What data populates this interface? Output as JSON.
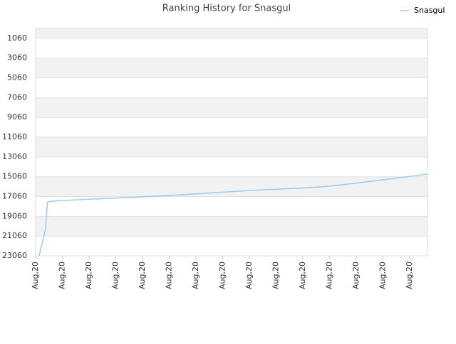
{
  "chart_data": {
    "type": "line",
    "title": "Ranking History for Snasgul",
    "x": [
      0.13,
      0.37,
      0.43,
      0.45,
      0.67,
      2,
      4,
      6,
      8,
      10,
      11.01,
      12,
      13,
      14.67
    ],
    "series": [
      {
        "name": "Snasgul",
        "color": "#9ec9ec",
        "values": [
          23060,
          20330,
          18030,
          17600,
          17520,
          17330,
          17090,
          16800,
          16450,
          16200,
          16015,
          15700,
          15370,
          14790
        ]
      }
    ],
    "xlim": [
      0,
      14.67
    ],
    "xticks": [
      {
        "value": 0,
        "label": "Aug,20"
      },
      {
        "value": 1,
        "label": "Aug,20"
      },
      {
        "value": 2,
        "label": "Aug,20"
      },
      {
        "value": 3,
        "label": "Aug,20"
      },
      {
        "value": 4,
        "label": "Aug,20"
      },
      {
        "value": 5,
        "label": "Aug,20"
      },
      {
        "value": 6,
        "label": "Aug,20"
      },
      {
        "value": 7,
        "label": "Aug,20"
      },
      {
        "value": 8,
        "label": "Aug,20"
      },
      {
        "value": 9,
        "label": "Aug,20"
      },
      {
        "value": 10,
        "label": "Aug,20"
      },
      {
        "value": 11,
        "label": "Aug,20"
      },
      {
        "value": 12,
        "label": "Aug,20"
      },
      {
        "value": 13,
        "label": "Aug,20"
      },
      {
        "value": 14,
        "label": "Aug,20"
      }
    ],
    "ylim": [
      23060,
      60
    ],
    "yticks": [
      1060,
      3060,
      5060,
      7060,
      9060,
      11060,
      13060,
      15060,
      17060,
      19060,
      21060,
      23060
    ],
    "grid": true,
    "legend": "top-right"
  }
}
